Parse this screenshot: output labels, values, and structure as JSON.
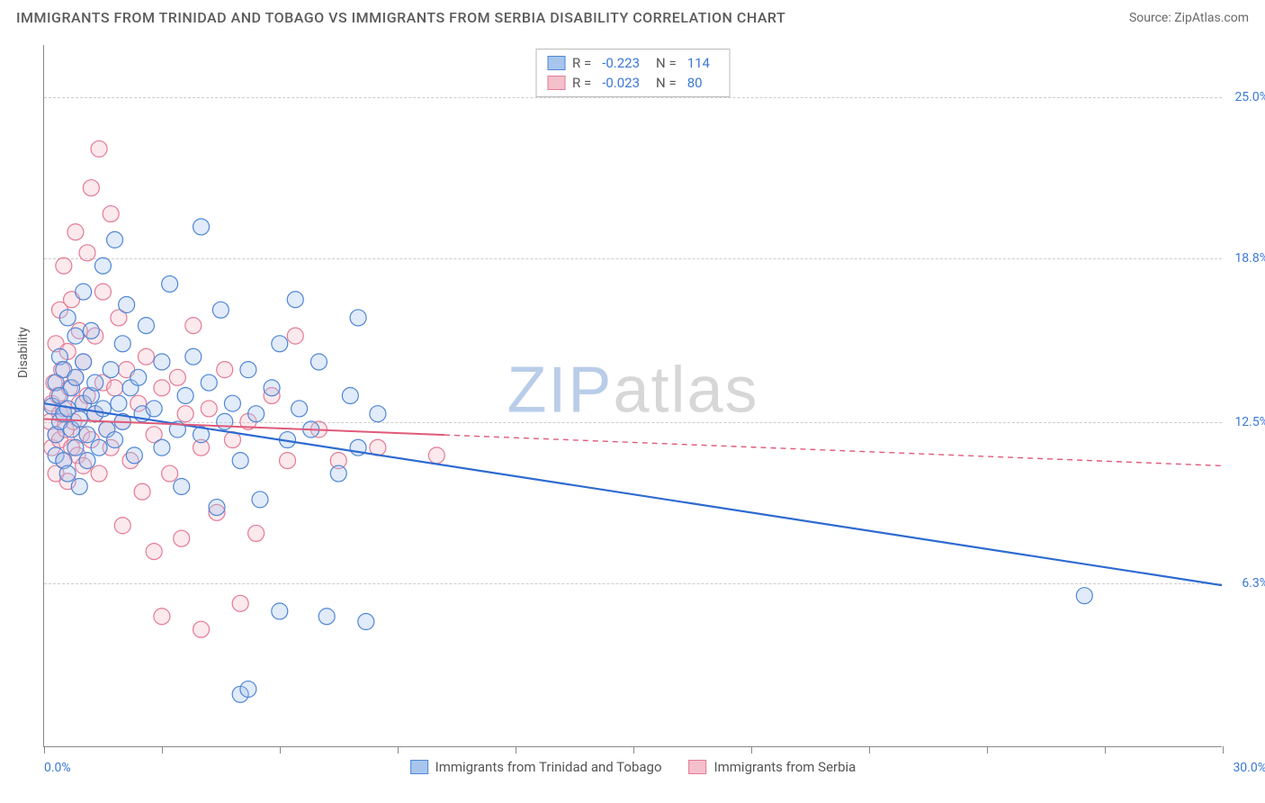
{
  "header": {
    "title": "IMMIGRANTS FROM TRINIDAD AND TOBAGO VS IMMIGRANTS FROM SERBIA DISABILITY CORRELATION CHART",
    "source": "Source: ZipAtlas.com"
  },
  "ylabel": "Disability",
  "watermark": {
    "text1": "ZIP",
    "text2": "atlas",
    "color1": "#b9cde9",
    "color2": "#d7d7d7"
  },
  "chart": {
    "type": "scatter",
    "xlim": [
      0,
      30
    ],
    "ylim": [
      0,
      27
    ],
    "background_color": "#ffffff",
    "grid_color": "#cccccc",
    "axis_color": "#888888",
    "tick_label_color": "#3b78d8",
    "tick_fontsize": 14,
    "label_fontsize": 14,
    "yticks": [
      {
        "value": 6.3,
        "label": "6.3%"
      },
      {
        "value": 12.5,
        "label": "12.5%"
      },
      {
        "value": 18.8,
        "label": "18.8%"
      },
      {
        "value": 25.0,
        "label": "25.0%"
      }
    ],
    "xticks": [
      0,
      3,
      6,
      9,
      12,
      15,
      18,
      21,
      24,
      27,
      30
    ],
    "xlabel_min": "0.0%",
    "xlabel_max": "30.0%",
    "marker_radius": 9,
    "marker_stroke_width": 1.2,
    "marker_fill_opacity": 0.35,
    "series": [
      {
        "name": "Immigrants from Trinidad and Tobago",
        "color_fill": "#a8c6ed",
        "color_stroke": "#4f86d6",
        "legend": {
          "R": "-0.223",
          "N": "114"
        },
        "trend": {
          "x1": 0,
          "y1": 13.2,
          "x2": 30,
          "y2": 6.2,
          "solid_until_x": 30,
          "stroke": "#2e6bd0",
          "stroke_width": 2.2
        },
        "points": [
          [
            0.2,
            13.1
          ],
          [
            0.3,
            12.0
          ],
          [
            0.3,
            14.0
          ],
          [
            0.3,
            11.2
          ],
          [
            0.4,
            13.5
          ],
          [
            0.4,
            12.5
          ],
          [
            0.4,
            15.0
          ],
          [
            0.5,
            11.0
          ],
          [
            0.5,
            12.8
          ],
          [
            0.5,
            14.5
          ],
          [
            0.6,
            13.0
          ],
          [
            0.6,
            16.5
          ],
          [
            0.6,
            10.5
          ],
          [
            0.7,
            12.2
          ],
          [
            0.7,
            13.8
          ],
          [
            0.8,
            11.5
          ],
          [
            0.8,
            14.2
          ],
          [
            0.8,
            15.8
          ],
          [
            0.9,
            12.6
          ],
          [
            0.9,
            10.0
          ],
          [
            1.0,
            13.2
          ],
          [
            1.0,
            17.5
          ],
          [
            1.0,
            14.8
          ],
          [
            1.1,
            12.0
          ],
          [
            1.1,
            11.0
          ],
          [
            1.2,
            13.5
          ],
          [
            1.2,
            16.0
          ],
          [
            1.3,
            12.8
          ],
          [
            1.3,
            14.0
          ],
          [
            1.4,
            11.5
          ],
          [
            1.5,
            13.0
          ],
          [
            1.5,
            18.5
          ],
          [
            1.6,
            12.2
          ],
          [
            1.7,
            14.5
          ],
          [
            1.8,
            11.8
          ],
          [
            1.8,
            19.5
          ],
          [
            1.9,
            13.2
          ],
          [
            2.0,
            12.5
          ],
          [
            2.0,
            15.5
          ],
          [
            2.1,
            17.0
          ],
          [
            2.2,
            13.8
          ],
          [
            2.3,
            11.2
          ],
          [
            2.4,
            14.2
          ],
          [
            2.5,
            12.8
          ],
          [
            2.6,
            16.2
          ],
          [
            2.8,
            13.0
          ],
          [
            3.0,
            14.8
          ],
          [
            3.0,
            11.5
          ],
          [
            3.2,
            17.8
          ],
          [
            3.4,
            12.2
          ],
          [
            3.5,
            10.0
          ],
          [
            3.6,
            13.5
          ],
          [
            3.8,
            15.0
          ],
          [
            4.0,
            12.0
          ],
          [
            4.0,
            20.0
          ],
          [
            4.2,
            14.0
          ],
          [
            4.4,
            9.2
          ],
          [
            4.5,
            16.8
          ],
          [
            4.6,
            12.5
          ],
          [
            4.8,
            13.2
          ],
          [
            5.0,
            11.0
          ],
          [
            5.0,
            2.0
          ],
          [
            5.2,
            2.2
          ],
          [
            5.2,
            14.5
          ],
          [
            5.4,
            12.8
          ],
          [
            5.5,
            9.5
          ],
          [
            5.8,
            13.8
          ],
          [
            6.0,
            15.5
          ],
          [
            6.0,
            5.2
          ],
          [
            6.2,
            11.8
          ],
          [
            6.4,
            17.2
          ],
          [
            6.5,
            13.0
          ],
          [
            6.8,
            12.2
          ],
          [
            7.0,
            14.8
          ],
          [
            7.2,
            5.0
          ],
          [
            7.5,
            10.5
          ],
          [
            7.8,
            13.5
          ],
          [
            8.0,
            16.5
          ],
          [
            8.0,
            11.5
          ],
          [
            8.2,
            4.8
          ],
          [
            8.5,
            12.8
          ],
          [
            26.5,
            5.8
          ]
        ]
      },
      {
        "name": "Immigrants from Serbia",
        "color_fill": "#f4c0cc",
        "color_stroke": "#e47a94",
        "legend": {
          "R": "-0.023",
          "N": "80"
        },
        "trend": {
          "x1": 0,
          "y1": 12.6,
          "x2": 30,
          "y2": 10.8,
          "solid_until_x": 10.2,
          "stroke": "#e05a7a",
          "stroke_width": 2,
          "dash": "6,5"
        },
        "points": [
          [
            0.15,
            12.5
          ],
          [
            0.2,
            13.2
          ],
          [
            0.2,
            11.5
          ],
          [
            0.25,
            14.0
          ],
          [
            0.3,
            12.0
          ],
          [
            0.3,
            15.5
          ],
          [
            0.3,
            10.5
          ],
          [
            0.35,
            13.5
          ],
          [
            0.4,
            11.8
          ],
          [
            0.4,
            16.8
          ],
          [
            0.4,
            12.8
          ],
          [
            0.45,
            14.5
          ],
          [
            0.5,
            11.0
          ],
          [
            0.5,
            13.0
          ],
          [
            0.5,
            18.5
          ],
          [
            0.55,
            12.2
          ],
          [
            0.6,
            15.2
          ],
          [
            0.6,
            10.2
          ],
          [
            0.65,
            13.8
          ],
          [
            0.7,
            11.5
          ],
          [
            0.7,
            17.2
          ],
          [
            0.75,
            12.5
          ],
          [
            0.8,
            14.2
          ],
          [
            0.8,
            19.8
          ],
          [
            0.85,
            11.2
          ],
          [
            0.9,
            13.2
          ],
          [
            0.9,
            16.0
          ],
          [
            0.95,
            12.0
          ],
          [
            1.0,
            14.8
          ],
          [
            1.0,
            10.8
          ],
          [
            1.1,
            19.0
          ],
          [
            1.1,
            13.5
          ],
          [
            1.2,
            11.8
          ],
          [
            1.2,
            21.5
          ],
          [
            1.3,
            15.8
          ],
          [
            1.3,
            12.8
          ],
          [
            1.4,
            23.0
          ],
          [
            1.4,
            10.5
          ],
          [
            1.5,
            14.0
          ],
          [
            1.5,
            17.5
          ],
          [
            1.6,
            12.2
          ],
          [
            1.7,
            20.5
          ],
          [
            1.7,
            11.5
          ],
          [
            1.8,
            13.8
          ],
          [
            1.9,
            16.5
          ],
          [
            2.0,
            12.5
          ],
          [
            2.0,
            8.5
          ],
          [
            2.1,
            14.5
          ],
          [
            2.2,
            11.0
          ],
          [
            2.4,
            13.2
          ],
          [
            2.5,
            9.8
          ],
          [
            2.6,
            15.0
          ],
          [
            2.8,
            7.5
          ],
          [
            2.8,
            12.0
          ],
          [
            3.0,
            5.0
          ],
          [
            3.0,
            13.8
          ],
          [
            3.2,
            10.5
          ],
          [
            3.4,
            14.2
          ],
          [
            3.5,
            8.0
          ],
          [
            3.6,
            12.8
          ],
          [
            3.8,
            16.2
          ],
          [
            4.0,
            11.5
          ],
          [
            4.0,
            4.5
          ],
          [
            4.2,
            13.0
          ],
          [
            4.4,
            9.0
          ],
          [
            4.6,
            14.5
          ],
          [
            4.8,
            11.8
          ],
          [
            5.0,
            5.5
          ],
          [
            5.2,
            12.5
          ],
          [
            5.4,
            8.2
          ],
          [
            5.8,
            13.5
          ],
          [
            6.2,
            11.0
          ],
          [
            6.4,
            15.8
          ],
          [
            7.0,
            12.2
          ],
          [
            7.5,
            11.0
          ],
          [
            8.5,
            11.5
          ],
          [
            10.0,
            11.2
          ]
        ]
      }
    ]
  }
}
